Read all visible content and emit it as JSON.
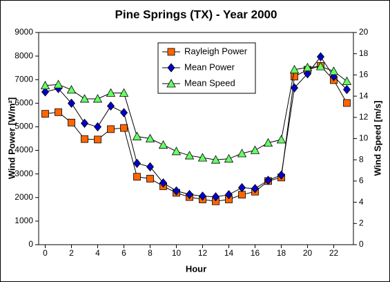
{
  "chart_data": {
    "type": "line",
    "title": "Pine Springs (TX) - Year 2000",
    "x_label": "Hour",
    "y_label": "Wind Power [W/m²]",
    "y2_label": "Wind Speed [m/s]",
    "x": [
      0,
      1,
      2,
      3,
      4,
      5,
      6,
      7,
      8,
      9,
      10,
      11,
      12,
      13,
      14,
      15,
      16,
      17,
      18,
      19,
      20,
      21,
      22,
      23
    ],
    "series": [
      {
        "name": "Rayleigh Power",
        "color": "#ff6600",
        "marker": "square",
        "values": [
          5550,
          5620,
          5180,
          4480,
          4460,
          4900,
          4950,
          2880,
          2800,
          2480,
          2200,
          2020,
          1920,
          1840,
          1920,
          2120,
          2250,
          2700,
          2850,
          7130,
          7420,
          7580,
          6980,
          6010
        ]
      },
      {
        "name": "Mean Power",
        "color": "#0000cc",
        "marker": "diamond",
        "values": [
          6480,
          6620,
          6000,
          5150,
          5000,
          5880,
          5600,
          3450,
          3300,
          2620,
          2280,
          2130,
          2060,
          2030,
          2120,
          2420,
          2380,
          2730,
          2950,
          6650,
          7250,
          7970,
          7130,
          6580
        ]
      },
      {
        "name": "Mean Speed",
        "color": "#66ff66",
        "marker": "triangle",
        "axis": "y2",
        "values": [
          15.0,
          15.1,
          14.6,
          13.75,
          13.75,
          14.3,
          14.3,
          10.2,
          10.0,
          9.4,
          8.8,
          8.4,
          8.2,
          8.0,
          8.1,
          8.6,
          8.9,
          9.6,
          9.9,
          16.5,
          16.7,
          16.8,
          16.35,
          15.4
        ]
      }
    ],
    "xlim": [
      -0.5,
      23.5
    ],
    "xticks": [
      0,
      2,
      4,
      6,
      8,
      10,
      12,
      14,
      16,
      18,
      20,
      22
    ],
    "ylim": [
      0,
      9000
    ],
    "yticks": [
      0,
      1000,
      2000,
      3000,
      4000,
      5000,
      6000,
      7000,
      8000,
      9000
    ],
    "y2lim": [
      0,
      20
    ],
    "y2ticks": [
      0,
      2,
      4,
      6,
      8,
      10,
      12,
      14,
      16,
      18,
      20
    ],
    "legend": "top-center"
  }
}
